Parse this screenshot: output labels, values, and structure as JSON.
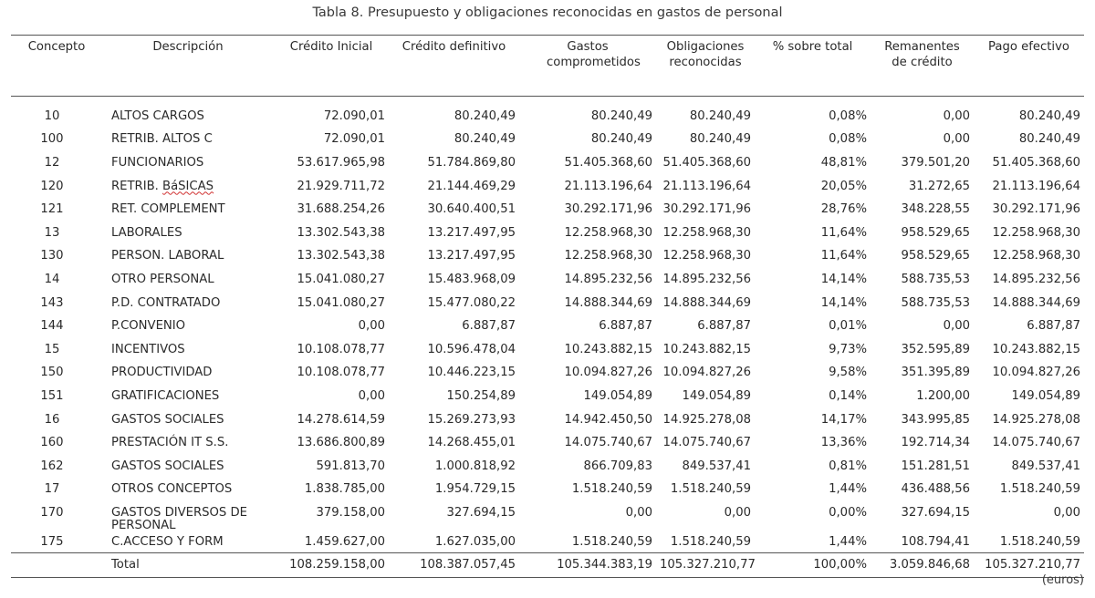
{
  "title": "Tabla 8. Presupuesto y obligaciones reconocidas en gastos de personal",
  "headers": {
    "concepto": "Concepto",
    "descripcion": "Descripción",
    "credito_inicial": "Crédito Inicial",
    "credito_definitivo": "Crédito definitivo",
    "gastos_comprometidos": "Gastos comprometidos",
    "obligaciones_reconocidas": "Obligaciones reconocidas",
    "pct_total": "% sobre total",
    "remanentes": "Remanentes de crédito",
    "pago_efectivo": "Pago efectivo"
  },
  "rows": [
    {
      "concepto": "10",
      "descripcion": "ALTOS CARGOS",
      "credito_inicial": "72.090,01",
      "credito_definitivo": "80.240,49",
      "gastos_comprometidos": "80.240,49",
      "obligaciones_reconocidas": "80.240,49",
      "pct_total": "0,08%",
      "remanentes": "0,00",
      "pago_efectivo": "80.240,49"
    },
    {
      "concepto": "100",
      "descripcion": "RETRIB. ALTOS C",
      "credito_inicial": "72.090,01",
      "credito_definitivo": "80.240,49",
      "gastos_comprometidos": "80.240,49",
      "obligaciones_reconocidas": "80.240,49",
      "pct_total": "0,08%",
      "remanentes": "0,00",
      "pago_efectivo": "80.240,49"
    },
    {
      "concepto": "12",
      "descripcion": "FUNCIONARIOS",
      "credito_inicial": "53.617.965,98",
      "credito_definitivo": "51.784.869,80",
      "gastos_comprometidos": "51.405.368,60",
      "obligaciones_reconocidas": "51.405.368,60",
      "pct_total": "48,81%",
      "remanentes": "379.501,20",
      "pago_efectivo": "51.405.368,60"
    },
    {
      "concepto": "120",
      "descripcion_prefix": "RETRIB. ",
      "descripcion_word": "BáSICAS",
      "credito_inicial": "21.929.711,72",
      "credito_definitivo": "21.144.469,29",
      "gastos_comprometidos": "21.113.196,64",
      "obligaciones_reconocidas": "21.113.196,64",
      "pct_total": "20,05%",
      "remanentes": "31.272,65",
      "pago_efectivo": "21.113.196,64"
    },
    {
      "concepto": "121",
      "descripcion": "RET. COMPLEMENT",
      "credito_inicial": "31.688.254,26",
      "credito_definitivo": "30.640.400,51",
      "gastos_comprometidos": "30.292.171,96",
      "obligaciones_reconocidas": "30.292.171,96",
      "pct_total": "28,76%",
      "remanentes": "348.228,55",
      "pago_efectivo": "30.292.171,96"
    },
    {
      "concepto": "13",
      "descripcion": "LABORALES",
      "credito_inicial": "13.302.543,38",
      "credito_definitivo": "13.217.497,95",
      "gastos_comprometidos": "12.258.968,30",
      "obligaciones_reconocidas": "12.258.968,30",
      "pct_total": "11,64%",
      "remanentes": "958.529,65",
      "pago_efectivo": "12.258.968,30"
    },
    {
      "concepto": "130",
      "descripcion": "PERSON. LABORAL",
      "credito_inicial": "13.302.543,38",
      "credito_definitivo": "13.217.497,95",
      "gastos_comprometidos": "12.258.968,30",
      "obligaciones_reconocidas": "12.258.968,30",
      "pct_total": "11,64%",
      "remanentes": "958.529,65",
      "pago_efectivo": "12.258.968,30"
    },
    {
      "concepto": "14",
      "descripcion": "OTRO PERSONAL",
      "credito_inicial": "15.041.080,27",
      "credito_definitivo": "15.483.968,09",
      "gastos_comprometidos": "14.895.232,56",
      "obligaciones_reconocidas": "14.895.232,56",
      "pct_total": "14,14%",
      "remanentes": "588.735,53",
      "pago_efectivo": "14.895.232,56"
    },
    {
      "concepto": "143",
      "descripcion": "P.D. CONTRATADO",
      "credito_inicial": "15.041.080,27",
      "credito_definitivo": "15.477.080,22",
      "gastos_comprometidos": "14.888.344,69",
      "obligaciones_reconocidas": "14.888.344,69",
      "pct_total": "14,14%",
      "remanentes": "588.735,53",
      "pago_efectivo": "14.888.344,69"
    },
    {
      "concepto": "144",
      "descripcion": "P.CONVENIO",
      "credito_inicial": "0,00",
      "credito_definitivo": "6.887,87",
      "gastos_comprometidos": "6.887,87",
      "obligaciones_reconocidas": "6.887,87",
      "pct_total": "0,01%",
      "remanentes": "0,00",
      "pago_efectivo": "6.887,87"
    },
    {
      "concepto": "15",
      "descripcion": "INCENTIVOS",
      "credito_inicial": "10.108.078,77",
      "credito_definitivo": "10.596.478,04",
      "gastos_comprometidos": "10.243.882,15",
      "obligaciones_reconocidas": "10.243.882,15",
      "pct_total": "9,73%",
      "remanentes": "352.595,89",
      "pago_efectivo": "10.243.882,15"
    },
    {
      "concepto": "150",
      "descripcion": "PRODUCTIVIDAD",
      "credito_inicial": "10.108.078,77",
      "credito_definitivo": "10.446.223,15",
      "gastos_comprometidos": "10.094.827,26",
      "obligaciones_reconocidas": "10.094.827,26",
      "pct_total": "9,58%",
      "remanentes": "351.395,89",
      "pago_efectivo": "10.094.827,26"
    },
    {
      "concepto": "151",
      "descripcion": "GRATIFICACIONES",
      "credito_inicial": "0,00",
      "credito_definitivo": "150.254,89",
      "gastos_comprometidos": "149.054,89",
      "obligaciones_reconocidas": "149.054,89",
      "pct_total": "0,14%",
      "remanentes": "1.200,00",
      "pago_efectivo": "149.054,89"
    },
    {
      "concepto": "16",
      "descripcion": "GASTOS SOCIALES",
      "credito_inicial": "14.278.614,59",
      "credito_definitivo": "15.269.273,93",
      "gastos_comprometidos": "14.942.450,50",
      "obligaciones_reconocidas": "14.925.278,08",
      "pct_total": "14,17%",
      "remanentes": "343.995,85",
      "pago_efectivo": "14.925.278,08"
    },
    {
      "concepto": "160",
      "descripcion": "PRESTACIÓN IT S.S.",
      "credito_inicial": "13.686.800,89",
      "credito_definitivo": "14.268.455,01",
      "gastos_comprometidos": "14.075.740,67",
      "obligaciones_reconocidas": "14.075.740,67",
      "pct_total": "13,36%",
      "remanentes": "192.714,34",
      "pago_efectivo": "14.075.740,67"
    },
    {
      "concepto": "162",
      "descripcion": "GASTOS SOCIALES",
      "credito_inicial": "591.813,70",
      "credito_definitivo": "1.000.818,92",
      "gastos_comprometidos": "866.709,83",
      "obligaciones_reconocidas": "849.537,41",
      "pct_total": "0,81%",
      "remanentes": "151.281,51",
      "pago_efectivo": "849.537,41"
    },
    {
      "concepto": "17",
      "descripcion": "OTROS CONCEPTOS",
      "credito_inicial": "1.838.785,00",
      "credito_definitivo": "1.954.729,15",
      "gastos_comprometidos": "1.518.240,59",
      "obligaciones_reconocidas": "1.518.240,59",
      "pct_total": "1,44%",
      "remanentes": "436.488,56",
      "pago_efectivo": "1.518.240,59"
    },
    {
      "concepto": "170",
      "descripcion": "GASTOS DIVERSOS DE PERSONAL",
      "credito_inicial": "379.158,00",
      "credito_definitivo": "327.694,15",
      "gastos_comprometidos": "0,00",
      "obligaciones_reconocidas": "0,00",
      "pct_total": "0,00%",
      "remanentes": "327.694,15",
      "pago_efectivo": "0,00"
    },
    {
      "concepto": "175",
      "descripcion": "C.ACCESO Y FORM",
      "credito_inicial": "1.459.627,00",
      "credito_definitivo": "1.627.035,00",
      "gastos_comprometidos": "1.518.240,59",
      "obligaciones_reconocidas": "1.518.240,59",
      "pct_total": "1,44%",
      "remanentes": "108.794,41",
      "pago_efectivo": "1.518.240,59"
    }
  ],
  "total": {
    "concepto": "",
    "descripcion": "Total",
    "credito_inicial": "108.259.158,00",
    "credito_definitivo": "108.387.057,45",
    "gastos_comprometidos": "105.344.383,19",
    "obligaciones_reconocidas": "105.327.210,77",
    "pct_total": "100,00%",
    "remanentes": "3.059.846,68",
    "pago_efectivo": "105.327.210,77"
  },
  "units": "(euros)"
}
